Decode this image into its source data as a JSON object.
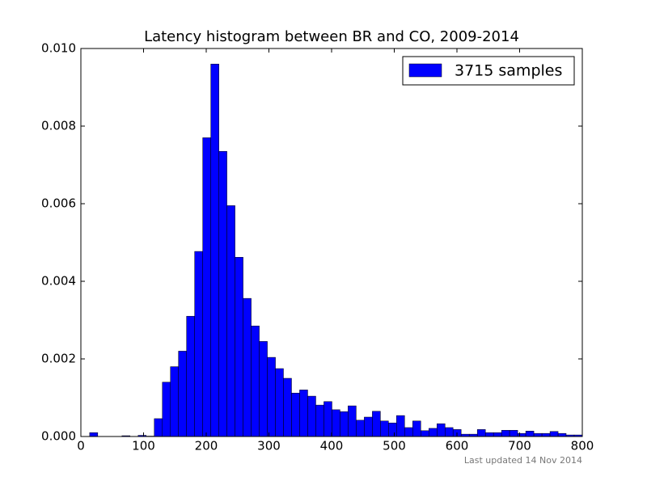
{
  "chart_data": {
    "type": "histogram",
    "title": "Latency histogram between BR and CO, 2009-2014",
    "annotation": "Last updated 14 Nov 2014",
    "bins": [
      14.0,
      26.9,
      39.8,
      52.7,
      65.5,
      78.4,
      91.3,
      104.2,
      117.1,
      130.0,
      142.9,
      155.7,
      168.6,
      181.5,
      194.4,
      207.3,
      220.2,
      233.0,
      245.9,
      258.8,
      271.7,
      284.6,
      297.5,
      310.4,
      323.2,
      336.1,
      349.0,
      361.9,
      374.8,
      387.7,
      400.6,
      413.4,
      426.3,
      439.2,
      452.1,
      465.0,
      477.9,
      490.8,
      503.6,
      516.5,
      529.4,
      542.3,
      555.2,
      568.1,
      581.0,
      593.8,
      606.7,
      619.6,
      632.5,
      645.4,
      658.3,
      671.2,
      684.0,
      696.9,
      709.8,
      722.7,
      735.6,
      748.5,
      761.4,
      774.2,
      787.1,
      800.0
    ],
    "series": [
      {
        "name": "3715 samples",
        "color": "#0000ff",
        "values": [
          0.0001,
          0,
          0,
          0,
          2e-05,
          0,
          3e-05,
          1e-05,
          0.00046,
          0.0014,
          0.0018,
          0.0022,
          0.0031,
          0.00477,
          0.0077,
          0.0096,
          0.00735,
          0.00595,
          0.00462,
          0.00356,
          0.00285,
          0.00245,
          0.00204,
          0.00175,
          0.0015,
          0.00112,
          0.0012,
          0.00104,
          0.00081,
          0.0009,
          0.00069,
          0.00064,
          0.00079,
          0.00042,
          0.0005,
          0.00065,
          0.0004,
          0.00035,
          0.00054,
          0.00023,
          0.0004,
          0.00015,
          0.00021,
          0.00033,
          0.00023,
          0.00018,
          6e-05,
          6e-05,
          0.00018,
          0.0001,
          0.0001,
          0.00016,
          0.00016,
          8e-05,
          0.00014,
          8e-05,
          8e-05,
          0.00013,
          8e-05,
          4e-05,
          4e-05
        ]
      }
    ],
    "xlim": [
      0,
      800
    ],
    "xticks": [
      0,
      100,
      200,
      300,
      400,
      500,
      600,
      700,
      800
    ],
    "ylim": [
      0,
      0.01
    ],
    "yticks": [
      {
        "value": 0,
        "label": "0.000"
      },
      {
        "value": 0.002,
        "label": "0.002"
      },
      {
        "value": 0.004,
        "label": "0.004"
      },
      {
        "value": 0.006,
        "label": "0.006"
      },
      {
        "value": 0.008,
        "label": "0.008"
      },
      {
        "value": 0.01,
        "label": "0.010"
      }
    ],
    "legend": "upper right"
  }
}
